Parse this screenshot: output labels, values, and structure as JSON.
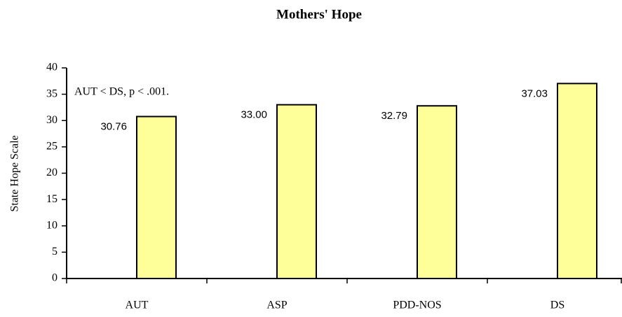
{
  "chart_data": {
    "type": "bar",
    "title": "Mothers' Hope",
    "y_label": "State Hope Scale",
    "annotation": "AUT < DS, p < .001.",
    "categories": [
      "AUT",
      "ASP",
      "PDD-NOS",
      "DS"
    ],
    "values": [
      30.76,
      33,
      32.79,
      37.03
    ],
    "value_labels": [
      "30.76",
      "33.00",
      "32.79",
      "37.03"
    ],
    "color": "#ffff99",
    "ylim": [
      0,
      40
    ],
    "yticks": [
      0,
      5,
      10,
      15,
      20,
      25,
      30,
      35,
      40
    ],
    "grid": false
  }
}
